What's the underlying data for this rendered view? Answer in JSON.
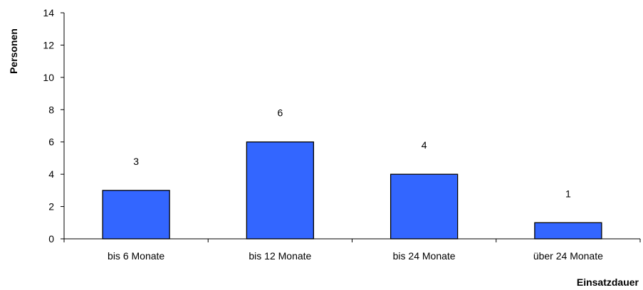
{
  "chart_data": {
    "type": "bar",
    "title": "",
    "xlabel": "Einsatzdauer",
    "ylabel": "Personen",
    "categories": [
      "bis 6 Monate",
      "bis 12 Monate",
      "bis 24 Monate",
      "über 24 Monate"
    ],
    "values": [
      3,
      6,
      4,
      1
    ],
    "data_labels": [
      "3",
      "6",
      "4",
      "1"
    ],
    "ylim": [
      0,
      14
    ],
    "yticks": [
      0,
      2,
      4,
      6,
      8,
      10,
      12,
      14
    ],
    "ytick_labels": [
      "0",
      "2",
      "4",
      "6",
      "8",
      "10",
      "12",
      "14"
    ],
    "bar_color": "#3366FF",
    "grid": false,
    "legend": "none"
  }
}
